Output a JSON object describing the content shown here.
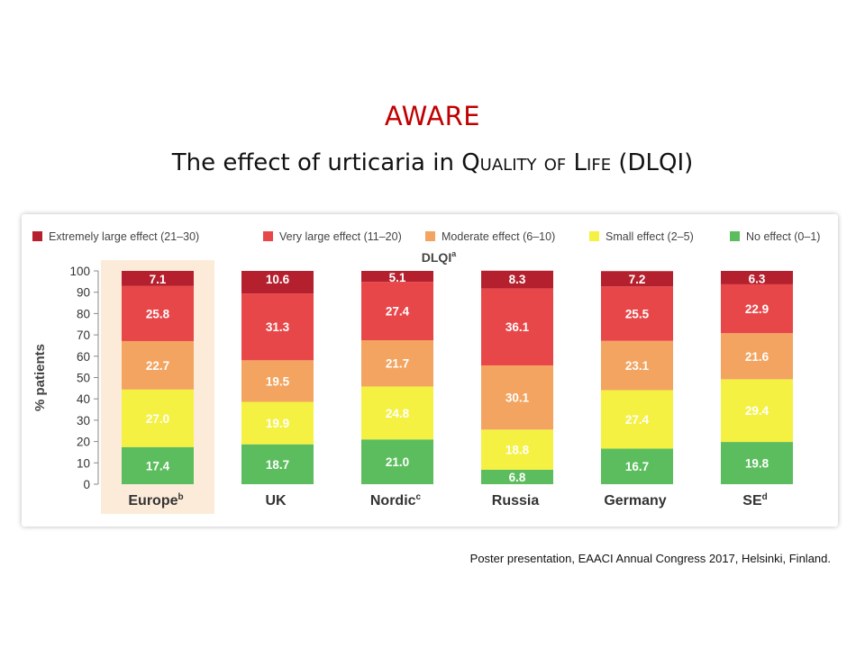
{
  "slide": {
    "title": "AWARE",
    "subtitle": "The effect of urticaria in Quality of Life (DLQI)",
    "citation": "Poster presentation, EAACI Annual Congress 2017, Helsinki, Finland."
  },
  "colors": {
    "extremely_large": "#b5202e",
    "very_large": "#e8474a",
    "moderate": "#f2a460",
    "small": "#f4f142",
    "none": "#5cbd5e",
    "highlight": "#fdebd9"
  },
  "chart_data": {
    "type": "bar",
    "stacked": true,
    "title": "DLQI",
    "title_superscript": "a",
    "ylabel": "% patients",
    "ylim": [
      0,
      100
    ],
    "yticks": [
      0,
      10,
      20,
      30,
      40,
      50,
      60,
      70,
      80,
      90,
      100
    ],
    "grid": false,
    "legend_position": "top",
    "categories": [
      {
        "label": "Europe",
        "sup": "b"
      },
      {
        "label": "UK",
        "sup": ""
      },
      {
        "label": "Nordic",
        "sup": "c"
      },
      {
        "label": "Russia",
        "sup": ""
      },
      {
        "label": "Germany",
        "sup": ""
      },
      {
        "label": "SE",
        "sup": "d"
      }
    ],
    "highlighted_category": "Europe",
    "series": [
      {
        "name": "No effect (0–1)",
        "color_key": "none",
        "values": [
          17.4,
          18.7,
          21.0,
          6.8,
          16.7,
          19.8
        ]
      },
      {
        "name": "Small effect (2–5)",
        "color_key": "small",
        "values": [
          27.0,
          19.9,
          24.8,
          18.8,
          27.4,
          29.4
        ]
      },
      {
        "name": "Moderate effect (6–10)",
        "color_key": "moderate",
        "values": [
          22.7,
          19.5,
          21.7,
          30.1,
          23.1,
          21.6
        ]
      },
      {
        "name": "Very large effect (11–20)",
        "color_key": "very_large",
        "values": [
          25.8,
          31.3,
          27.4,
          36.1,
          25.5,
          22.9
        ]
      },
      {
        "name": "Extremely large effect (21–30)",
        "color_key": "extremely_large",
        "values": [
          7.1,
          10.6,
          5.1,
          8.3,
          7.2,
          6.3
        ]
      }
    ],
    "legend_order": [
      "Extremely large effect (21–30)",
      "Very large effect (11–20)",
      "Moderate effect (6–10)",
      "Small effect (2–5)",
      "No effect (0–1)"
    ]
  }
}
